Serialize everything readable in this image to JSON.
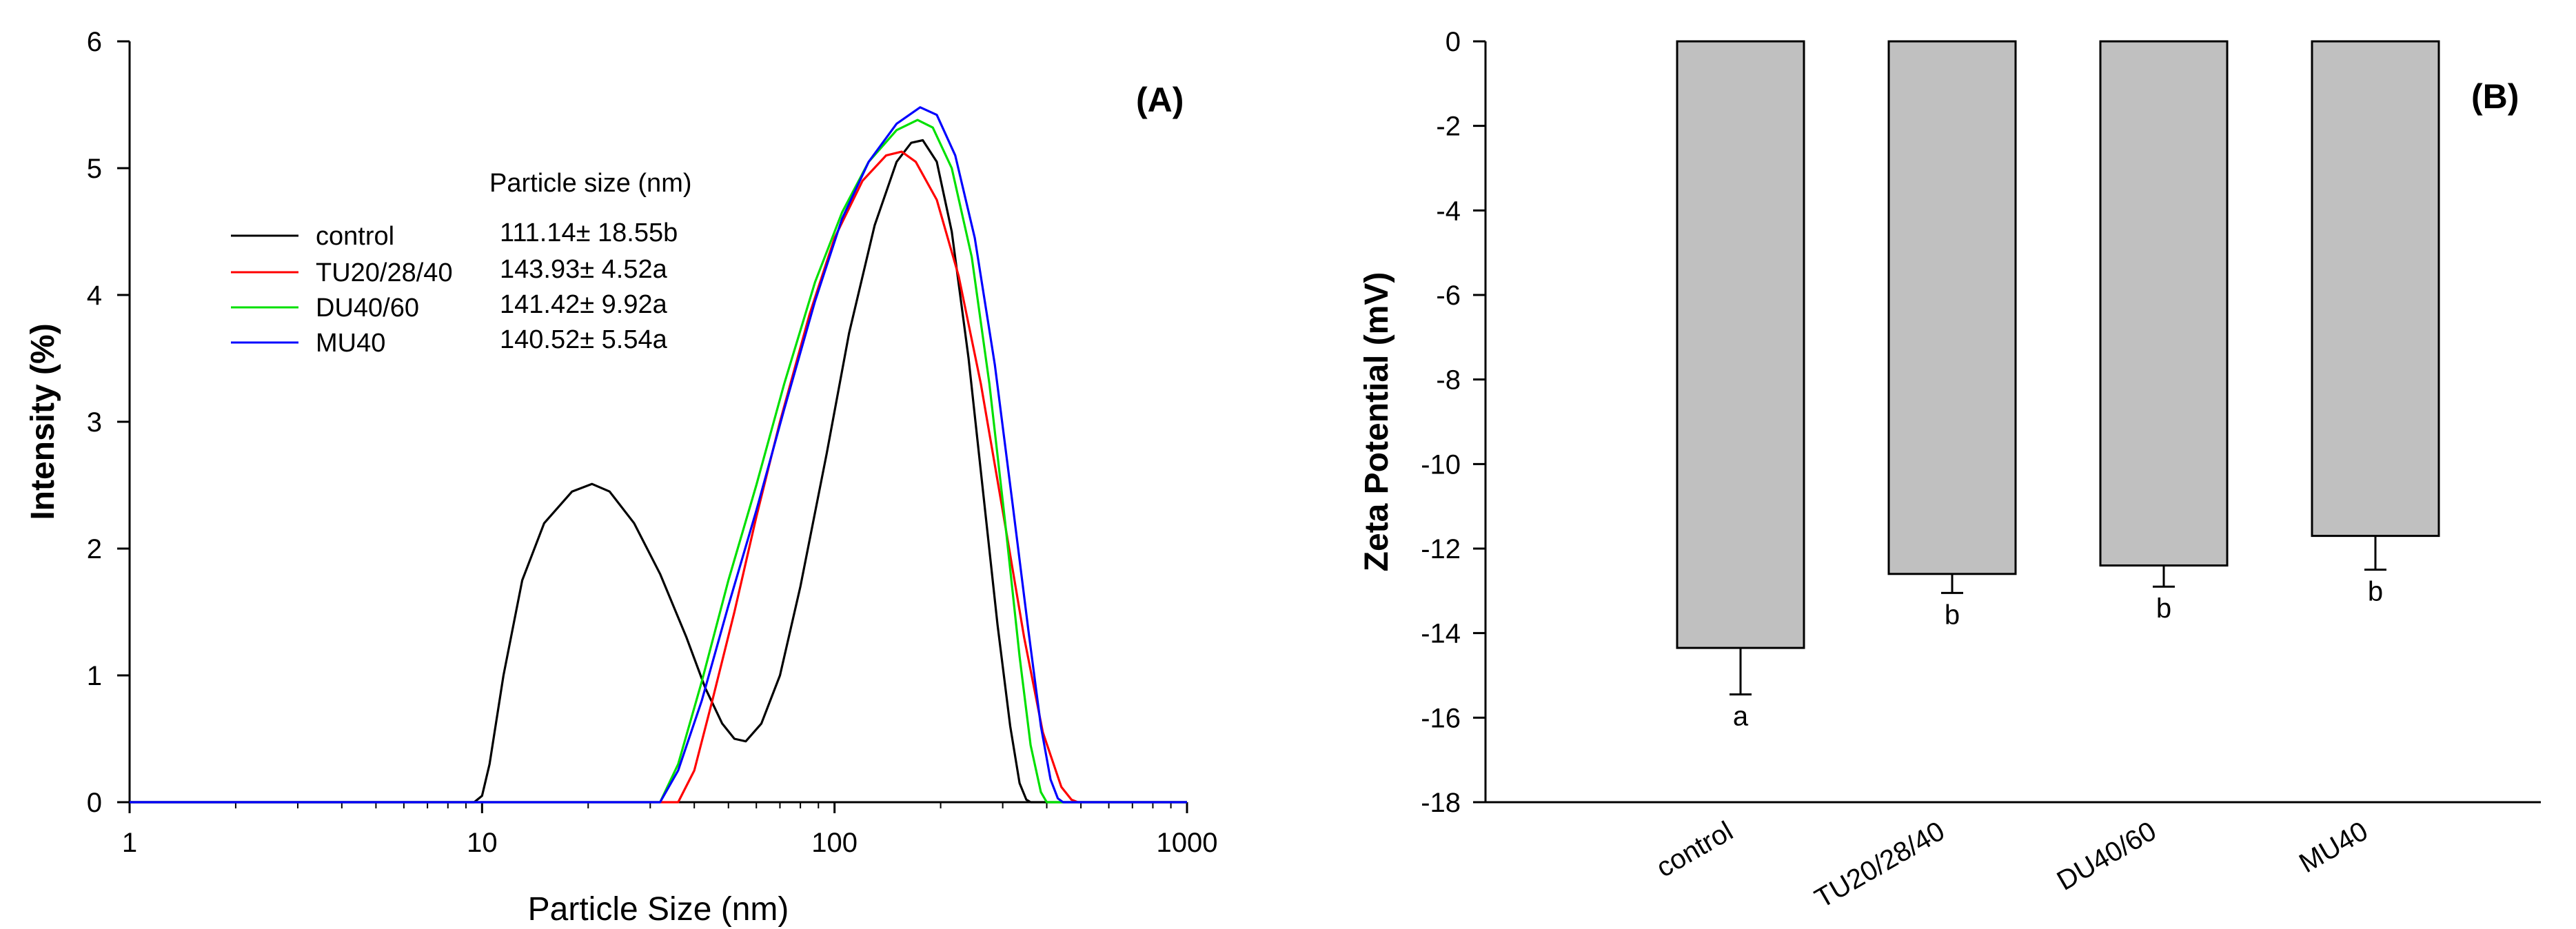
{
  "chart_data": [
    {
      "type": "line",
      "panel_label": "(A)",
      "xlabel": "Particle Size (nm)",
      "ylabel": "Intensity (%)",
      "xscale": "log",
      "xlim": [
        1,
        1000
      ],
      "ylim": [
        0,
        6
      ],
      "x_ticks": [
        "1",
        "10",
        "100",
        "1000"
      ],
      "y_ticks": [
        "0",
        "1",
        "2",
        "3",
        "4",
        "5",
        "6"
      ],
      "legend_title": "Particle size (nm)",
      "legend": [
        {
          "name": "control",
          "value": "111.14±  18.55b",
          "color": "#000000"
        },
        {
          "name": "TU20/28/40",
          "value": "143.93±  4.52a",
          "color": "#ff0000"
        },
        {
          "name": "DU40/60",
          "value": "141.42±  9.92a",
          "color": "#00e000"
        },
        {
          "name": "MU40",
          "value": "140.52±  5.54a",
          "color": "#0000ff"
        }
      ],
      "series": [
        {
          "name": "control",
          "color": "#000000",
          "points": [
            [
              1,
              0
            ],
            [
              9.5,
              0
            ],
            [
              10,
              0.05
            ],
            [
              10.5,
              0.3
            ],
            [
              11.5,
              1.0
            ],
            [
              13,
              1.75
            ],
            [
              15,
              2.2
            ],
            [
              18,
              2.45
            ],
            [
              20.5,
              2.51
            ],
            [
              23,
              2.45
            ],
            [
              27,
              2.2
            ],
            [
              32,
              1.8
            ],
            [
              38,
              1.3
            ],
            [
              43,
              0.9
            ],
            [
              48,
              0.62
            ],
            [
              52,
              0.5
            ],
            [
              56,
              0.48
            ],
            [
              62,
              0.62
            ],
            [
              70,
              1.0
            ],
            [
              80,
              1.7
            ],
            [
              95,
              2.75
            ],
            [
              110,
              3.7
            ],
            [
              130,
              4.55
            ],
            [
              150,
              5.05
            ],
            [
              165,
              5.2
            ],
            [
              178,
              5.22
            ],
            [
              195,
              5.05
            ],
            [
              215,
              4.5
            ],
            [
              240,
              3.5
            ],
            [
              265,
              2.4
            ],
            [
              290,
              1.4
            ],
            [
              315,
              0.6
            ],
            [
              335,
              0.15
            ],
            [
              350,
              0.02
            ],
            [
              360,
              0
            ],
            [
              1000,
              0
            ]
          ]
        },
        {
          "name": "TU20/28/40",
          "color": "#ff0000",
          "points": [
            [
              1,
              0
            ],
            [
              36,
              0
            ],
            [
              40,
              0.25
            ],
            [
              45,
              0.8
            ],
            [
              52,
              1.5
            ],
            [
              60,
              2.25
            ],
            [
              70,
              3.0
            ],
            [
              85,
              3.85
            ],
            [
              100,
              4.45
            ],
            [
              120,
              4.9
            ],
            [
              140,
              5.1
            ],
            [
              155,
              5.13
            ],
            [
              170,
              5.05
            ],
            [
              195,
              4.75
            ],
            [
              225,
              4.15
            ],
            [
              260,
              3.3
            ],
            [
              300,
              2.3
            ],
            [
              345,
              1.3
            ],
            [
              390,
              0.55
            ],
            [
              440,
              0.12
            ],
            [
              470,
              0.02
            ],
            [
              490,
              0
            ],
            [
              1000,
              0
            ]
          ]
        },
        {
          "name": "DU40/60",
          "color": "#00e000",
          "points": [
            [
              1,
              0
            ],
            [
              32,
              0
            ],
            [
              36,
              0.3
            ],
            [
              42,
              0.95
            ],
            [
              50,
              1.75
            ],
            [
              60,
              2.5
            ],
            [
              72,
              3.3
            ],
            [
              88,
              4.1
            ],
            [
              105,
              4.65
            ],
            [
              125,
              5.05
            ],
            [
              150,
              5.3
            ],
            [
              172,
              5.38
            ],
            [
              190,
              5.32
            ],
            [
              215,
              5.0
            ],
            [
              245,
              4.3
            ],
            [
              275,
              3.3
            ],
            [
              305,
              2.2
            ],
            [
              335,
              1.15
            ],
            [
              360,
              0.45
            ],
            [
              385,
              0.08
            ],
            [
              400,
              0
            ],
            [
              1000,
              0
            ]
          ]
        },
        {
          "name": "MU40",
          "color": "#0000ff",
          "points": [
            [
              1,
              0
            ],
            [
              32,
              0
            ],
            [
              36,
              0.25
            ],
            [
              42,
              0.8
            ],
            [
              50,
              1.55
            ],
            [
              60,
              2.3
            ],
            [
              72,
              3.1
            ],
            [
              88,
              3.95
            ],
            [
              105,
              4.6
            ],
            [
              125,
              5.05
            ],
            [
              150,
              5.35
            ],
            [
              175,
              5.48
            ],
            [
              195,
              5.42
            ],
            [
              220,
              5.1
            ],
            [
              250,
              4.45
            ],
            [
              285,
              3.45
            ],
            [
              320,
              2.35
            ],
            [
              355,
              1.35
            ],
            [
              385,
              0.6
            ],
            [
              410,
              0.18
            ],
            [
              430,
              0.03
            ],
            [
              445,
              0
            ],
            [
              1000,
              0
            ]
          ]
        }
      ]
    },
    {
      "type": "bar",
      "panel_label": "(B)",
      "ylabel": "Zeta Potential (mV)",
      "ylim": [
        -18,
        0
      ],
      "y_ticks": [
        "0",
        "-2",
        "-4",
        "-6",
        "-8",
        "-10",
        "-12",
        "-14",
        "-16",
        "-18"
      ],
      "categories": [
        "control",
        "TU20/28/40",
        "DU40/60",
        "MU40"
      ],
      "values": [
        -14.35,
        -12.6,
        -12.4,
        -11.7
      ],
      "errors": [
        1.1,
        0.45,
        0.5,
        0.8
      ],
      "letters": [
        "a",
        "b",
        "b",
        "b"
      ],
      "bar_color": "#c0c0c0"
    }
  ]
}
